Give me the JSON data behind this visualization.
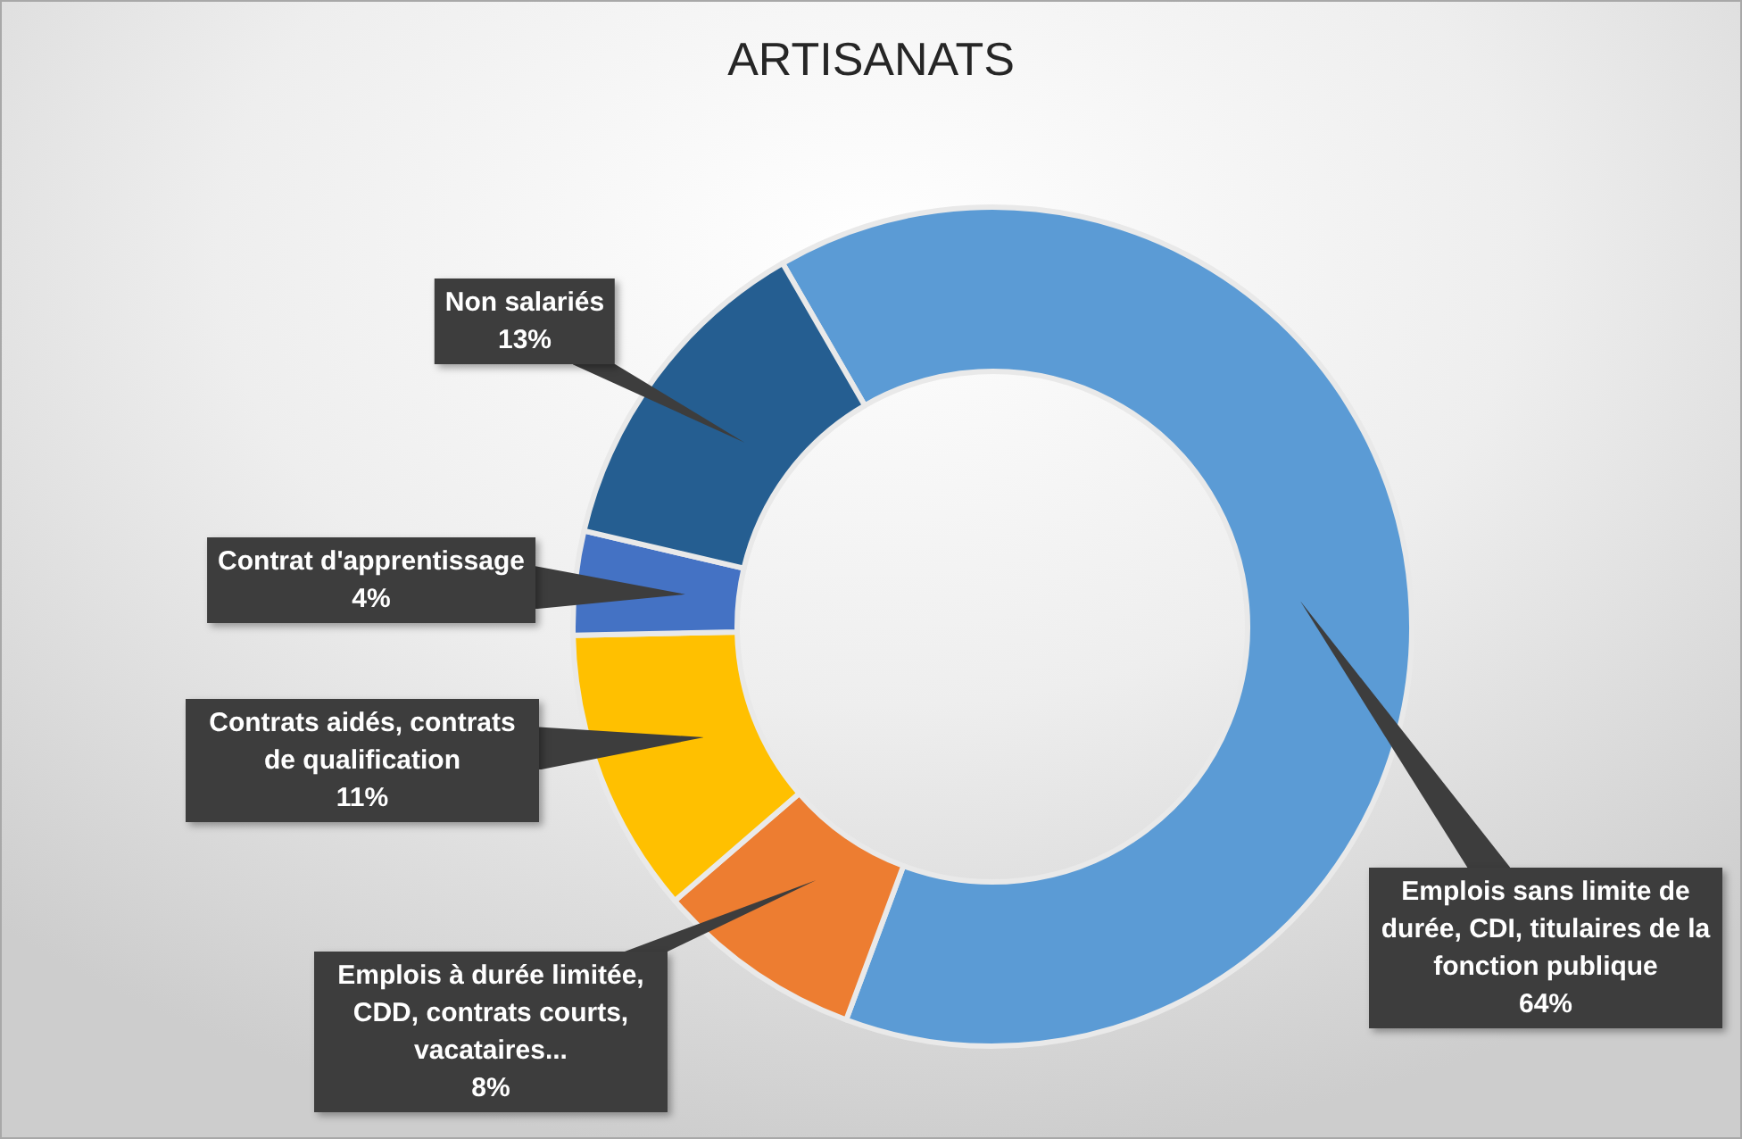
{
  "chart_data": {
    "type": "donut",
    "title": "ARTISANATS",
    "categories": [
      "Emplois sans limite de durée, CDI, titulaires de la fonction publique",
      "Emplois à durée limitée, CDD, contrats courts, vacataires...",
      "Contrats aidés, contrats de qualification",
      "Contrat d'apprentissage",
      "Non salariés"
    ],
    "values": [
      64,
      8,
      11,
      4,
      13
    ],
    "colors": [
      "#5b9bd5",
      "#ed7d31",
      "#ffc000",
      "#4472c4",
      "#255e91"
    ],
    "value_labels": [
      "64%",
      "8%",
      "11%",
      "4%",
      "13%"
    ]
  }
}
